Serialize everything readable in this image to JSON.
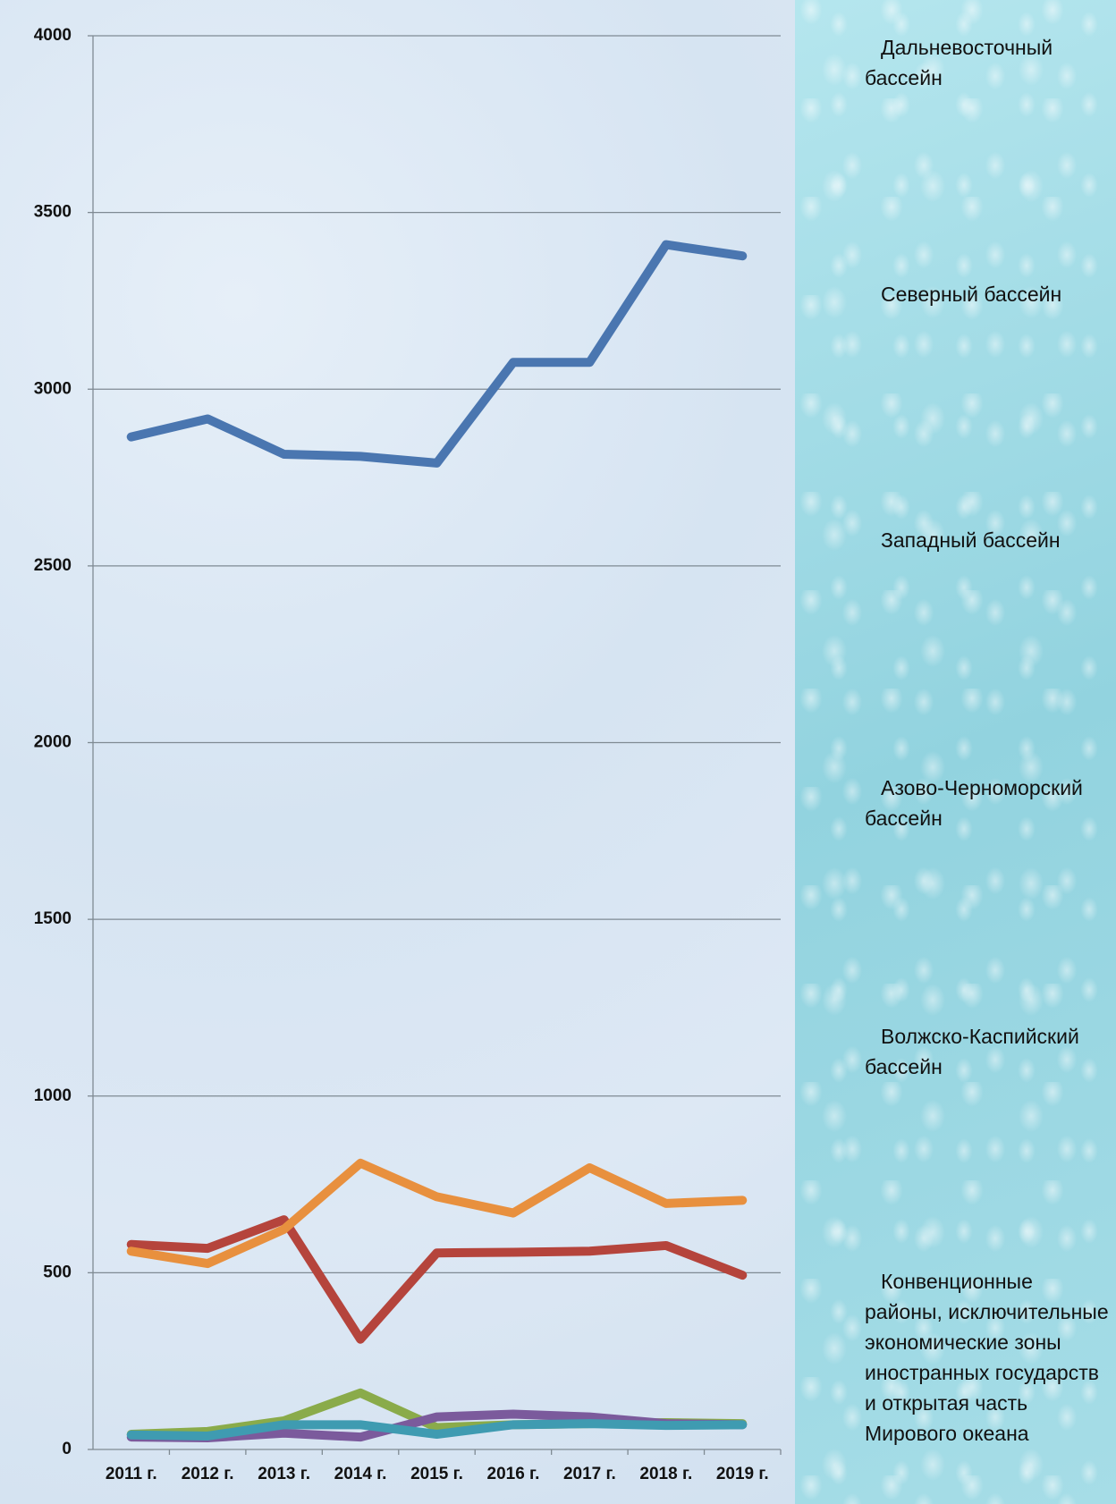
{
  "chart_data": {
    "type": "line",
    "categories": [
      "2011 г.",
      "2012 г.",
      "2013 г.",
      "2014 г.",
      "2015 г.",
      "2016 г.",
      "2017 г.",
      "2018 г.",
      "2019 г."
    ],
    "series": [
      {
        "name": "Дальневосточный бассейн",
        "color": "#4a76b0",
        "values": [
          2865,
          2916,
          2816,
          2810,
          2791,
          3076,
          3076,
          3409,
          3377
        ]
      },
      {
        "name": "Северный бассейн",
        "color": "#b5443c",
        "values": [
          580,
          569,
          650,
          312,
          556,
          558,
          561,
          577,
          493
        ]
      },
      {
        "name": "Западный  бассейн",
        "color": "#8aab4a",
        "values": [
          43,
          51,
          81,
          160,
          62,
          70,
          73,
          76,
          73
        ]
      },
      {
        "name": "Азово-Черноморский бассейн",
        "color": "#7b5a9c",
        "values": [
          35,
          33,
          46,
          35,
          92,
          100,
          92,
          73,
          70
        ]
      },
      {
        "name": "Волжско-Каспийский бассейн",
        "color": "#3f9bb1",
        "values": [
          41,
          38,
          70,
          70,
          43,
          70,
          73,
          68,
          70
        ]
      },
      {
        "name": "Конвенционные районы, исключительные экономические  зоны иностранных государств и  открытая часть Мирового океана",
        "color": "#e8903e",
        "values": [
          561,
          526,
          623,
          810,
          715,
          669,
          797,
          696,
          705
        ]
      }
    ],
    "ylim": [
      0,
      4000
    ],
    "yticks": [
      0,
      500,
      1000,
      1500,
      2000,
      2500,
      3000,
      3500,
      4000
    ],
    "grid": true,
    "legend": "right"
  }
}
